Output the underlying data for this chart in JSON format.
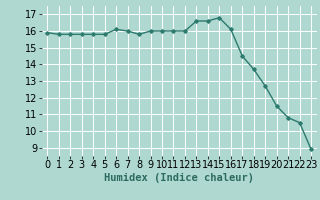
{
  "x": [
    0,
    1,
    2,
    3,
    4,
    5,
    6,
    7,
    8,
    9,
    10,
    11,
    12,
    13,
    14,
    15,
    16,
    17,
    18,
    19,
    20,
    21,
    22,
    23
  ],
  "y": [
    15.9,
    15.8,
    15.8,
    15.8,
    15.8,
    15.8,
    16.1,
    16.0,
    15.8,
    16.0,
    16.0,
    16.0,
    16.0,
    16.6,
    16.6,
    16.8,
    16.1,
    14.5,
    13.7,
    12.7,
    11.5,
    10.8,
    10.5,
    8.9
  ],
  "line_color": "#2d7a6e",
  "marker": "D",
  "marker_size": 1.8,
  "line_width": 1.0,
  "bg_color": "#aed8d0",
  "grid_color": "#ffffff",
  "xlabel": "Humidex (Indice chaleur)",
  "xlabel_fontsize": 7.5,
  "tick_fontsize": 7,
  "ylim": [
    8.5,
    17.5
  ],
  "xlim": [
    -0.5,
    23.5
  ],
  "yticks": [
    9,
    10,
    11,
    12,
    13,
    14,
    15,
    16,
    17
  ],
  "xtick_labels": [
    "0",
    "1",
    "2",
    "3",
    "4",
    "5",
    "6",
    "7",
    "8",
    "9",
    "10",
    "11",
    "12",
    "13",
    "14",
    "15",
    "16",
    "17",
    "18",
    "19",
    "20",
    "21",
    "22",
    "23"
  ]
}
